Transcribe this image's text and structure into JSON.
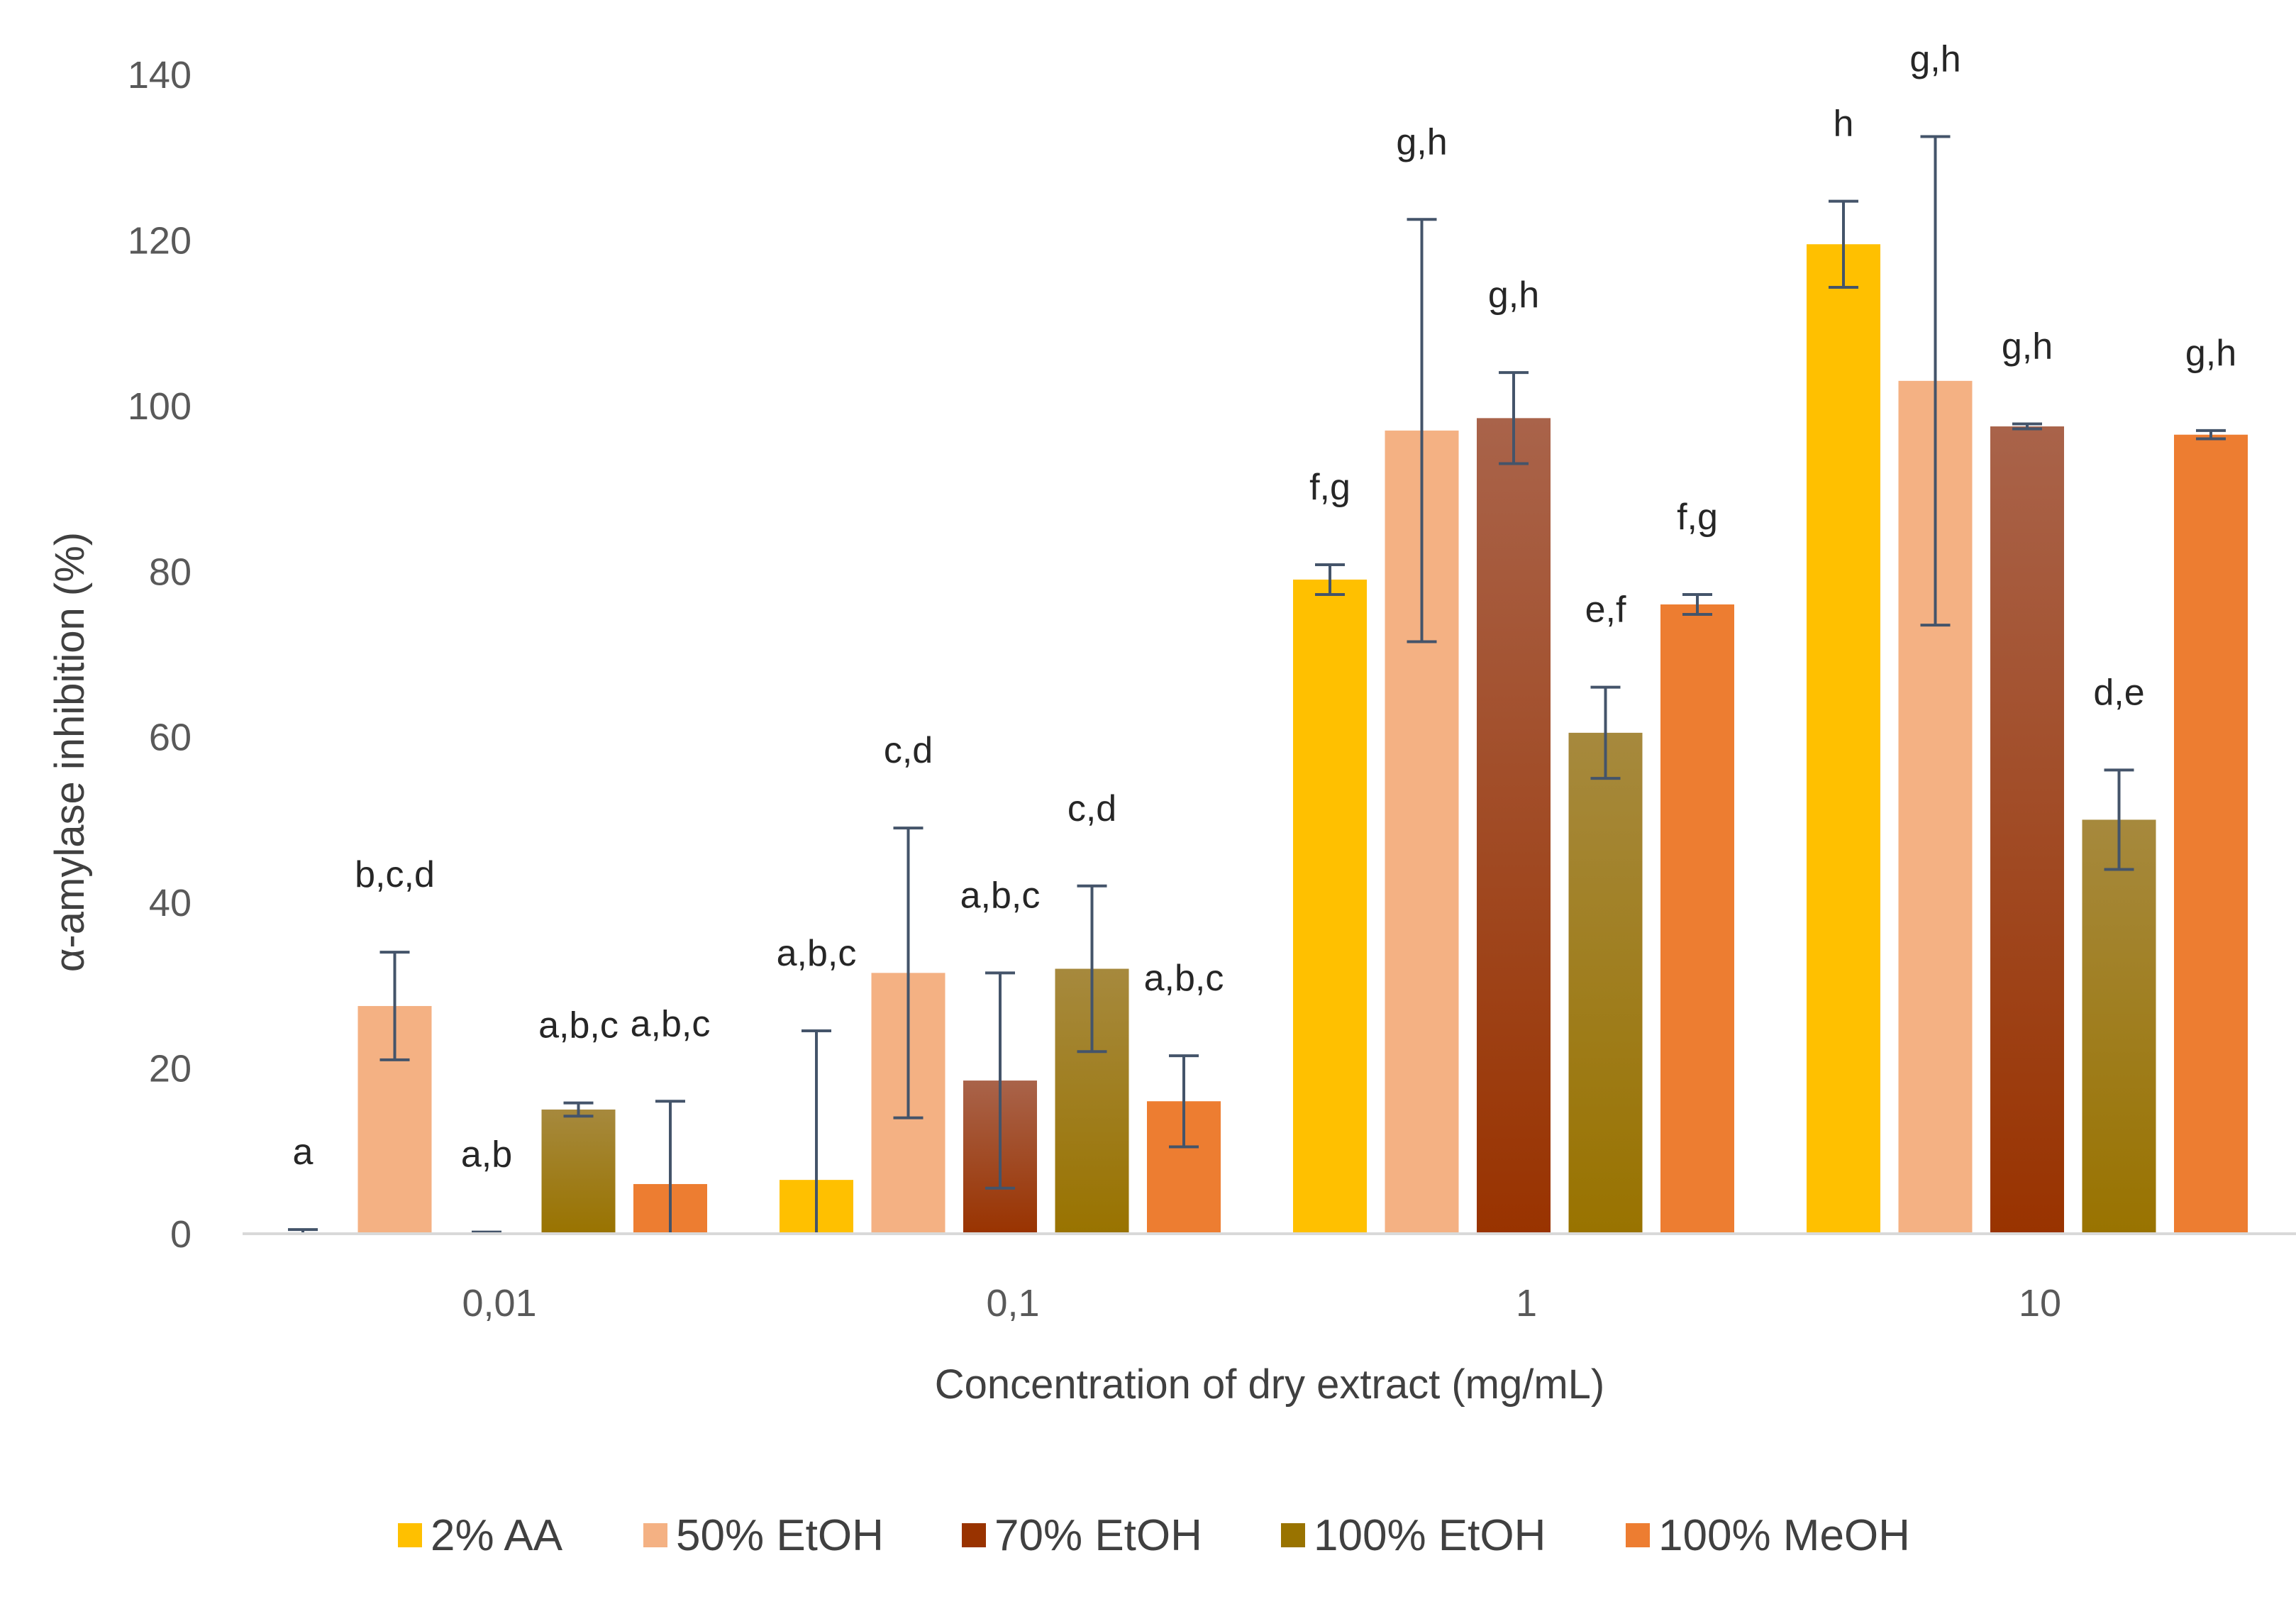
{
  "chart_data": {
    "type": "bar",
    "title": "",
    "xlabel": "Concentration of dry extract (mg/mL)",
    "ylabel": "α-amylase inhibition (%)",
    "ylim": [
      0,
      140
    ],
    "yticks": [
      0,
      20,
      40,
      60,
      80,
      100,
      120,
      140
    ],
    "grid": false,
    "legend_position": "bottom",
    "categories": [
      "0,01",
      "0,1",
      "1",
      "10"
    ],
    "series": [
      {
        "name": "2% AA",
        "colors": [
          "#ffc000",
          "#ffc000"
        ],
        "values": [
          0,
          6.5,
          79,
          119.5
        ],
        "errors": [
          0.5,
          18,
          1.8,
          5.2
        ],
        "labels": [
          "a",
          "a,b,c",
          "f,g",
          "h"
        ]
      },
      {
        "name": "50% EtOH",
        "colors": [
          "#f4b183",
          "#f4b183"
        ],
        "values": [
          27.5,
          31.5,
          97,
          103
        ],
        "errors": [
          6.5,
          17.5,
          25.5,
          29.5
        ],
        "labels": [
          "b,c,d",
          "c,d",
          "g,h",
          "g,h"
        ]
      },
      {
        "name": "70% EtOH",
        "colors": [
          "#a9634a",
          "#993300"
        ],
        "values": [
          0,
          18.5,
          98.5,
          97.5
        ],
        "errors": [
          0.2,
          13,
          5.5,
          0.3
        ],
        "labels": [
          "a,b",
          "a,b,c",
          "g,h",
          "g,h"
        ]
      },
      {
        "name": "100% EtOH",
        "colors": [
          "#a6893d",
          "#997300"
        ],
        "values": [
          15,
          32,
          60.5,
          50
        ],
        "errors": [
          0.8,
          10,
          5.5,
          6
        ],
        "labels": [
          "a,b,c",
          "c,d",
          "e,f",
          "d,e"
        ]
      },
      {
        "name": "100% MeOH",
        "colors": [
          "#ed7d31",
          "#ed7d31"
        ],
        "values": [
          6,
          16,
          76,
          96.5
        ],
        "errors": [
          10,
          5.5,
          1.2,
          0.5
        ],
        "labels": [
          "a,b,c",
          "a,b,c",
          "f,g",
          "g,h"
        ]
      }
    ]
  }
}
